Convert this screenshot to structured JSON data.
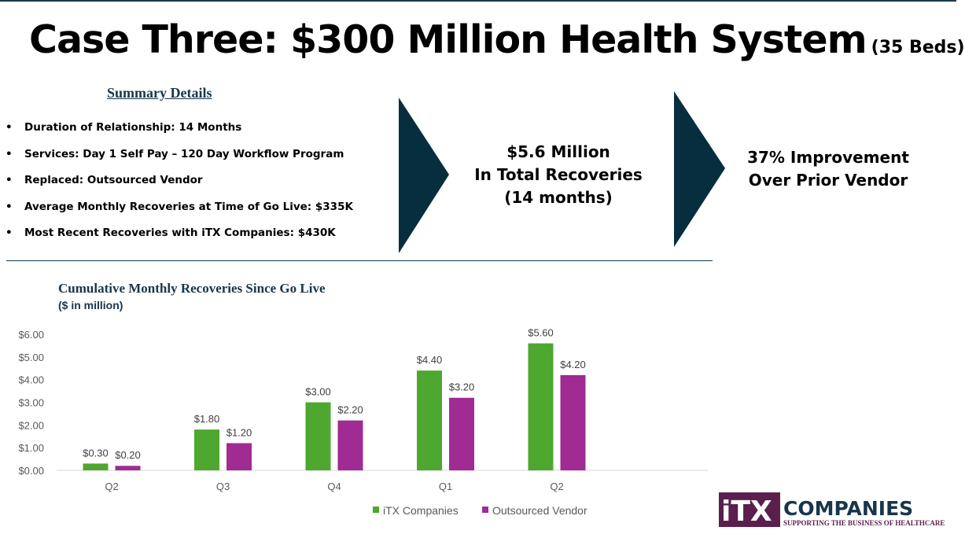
{
  "title": {
    "main": "Case Three: $300 Million Health System",
    "sub": "(35 Beds)"
  },
  "summary": {
    "heading": "Summary Details",
    "items": [
      "Duration of Relationship: 14 Months",
      "Services: Day 1 Self Pay – 120 Day Workflow Program",
      "Replaced: Outsourced Vendor",
      "Average Monthly Recoveries at Time of Go Live: $335K",
      "Most Recent Recoveries with iTX Companies:  $430K"
    ]
  },
  "callout1": {
    "line1": "$5.6 Million",
    "line2": "In Total Recoveries",
    "line3": "(14 months)"
  },
  "callout2": {
    "line1": "37% Improvement",
    "line2": "Over Prior Vendor"
  },
  "colors": {
    "navy": "#062e3f",
    "itx": "#4ea72e",
    "vendor": "#a02b93"
  },
  "logo": {
    "main": "COMPANIES",
    "tagline": "SUPPORTING THE BUSINESS OF HEALTHCARE"
  },
  "chart_data": {
    "type": "bar",
    "title": "Cumulative Monthly Recoveries Since Go Live",
    "subtitle": "($ in million)",
    "categories": [
      "Q2",
      "Q3",
      "Q4",
      "Q1",
      "Q2"
    ],
    "series": [
      {
        "name": "iTX Companies",
        "values": [
          0.3,
          1.8,
          3.0,
          4.4,
          5.6
        ],
        "labels": [
          "$0.30",
          "$1.80",
          "$3.00",
          "$4.40",
          "$5.60"
        ],
        "color": "#4ea72e"
      },
      {
        "name": "Outsourced Vendor",
        "values": [
          0.2,
          1.2,
          2.2,
          3.2,
          4.2
        ],
        "labels": [
          "$0.20",
          "$1.20",
          "$2.20",
          "$3.20",
          "$4.20"
        ],
        "color": "#a02b93"
      }
    ],
    "yticks": [
      "$0.00",
      "$1.00",
      "$2.00",
      "$3.00",
      "$4.00",
      "$5.00",
      "$6.00"
    ],
    "ylim": [
      0,
      6
    ],
    "grid": false,
    "legend": "bottom"
  }
}
